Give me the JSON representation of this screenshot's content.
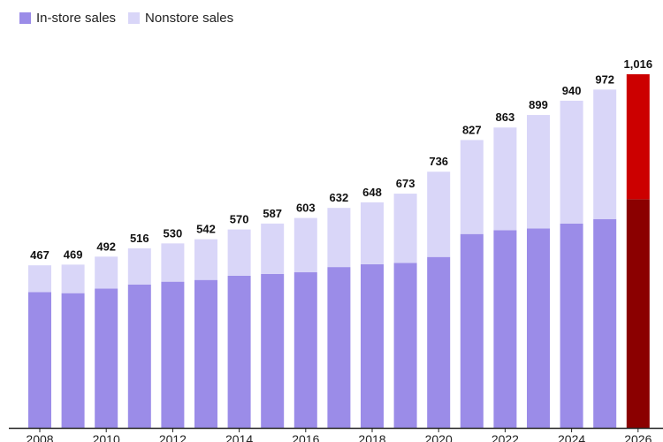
{
  "legend": {
    "in_store_label": "In-store sales",
    "nonstore_label": "Nonstore sales"
  },
  "colors": {
    "in_store": "#9b8ce8",
    "nonstore": "#d9d6f8",
    "in_store_highlight": "#8b0000",
    "nonstore_highlight": "#cc0000",
    "axis": "#222222"
  },
  "chart_data": {
    "type": "bar",
    "stacked": true,
    "categories": [
      "2008",
      "2009",
      "2010",
      "2011",
      "2012",
      "2013",
      "2014",
      "2015",
      "2016",
      "2017",
      "2018",
      "2019",
      "2020",
      "2021",
      "2022",
      "2023",
      "2024",
      "2025",
      "2026"
    ],
    "tick_labels": [
      "2008",
      "",
      "2010",
      "",
      "2012",
      "",
      "2014",
      "",
      "2016",
      "",
      "2018",
      "",
      "2020",
      "",
      "2022",
      "",
      "2024",
      "",
      "2026"
    ],
    "series": [
      {
        "name": "In-store sales",
        "values": [
          390,
          387,
          400,
          412,
          420,
          425,
          437,
          442,
          447,
          462,
          470,
          474,
          491,
          557,
          568,
          573,
          587,
          600,
          657
        ]
      },
      {
        "name": "Nonstore sales",
        "values": [
          77,
          82,
          92,
          104,
          110,
          117,
          133,
          145,
          156,
          170,
          178,
          199,
          245,
          270,
          295,
          326,
          353,
          372,
          359
        ]
      }
    ],
    "totals": [
      "467",
      "469",
      "492",
      "516",
      "530",
      "542",
      "570",
      "587",
      "603",
      "632",
      "648",
      "673",
      "736",
      "827",
      "863",
      "899",
      "940",
      "972",
      "1,016"
    ],
    "highlight_index": 18,
    "ylim": [
      0,
      1016
    ],
    "grid": false,
    "legend_position": "top-left"
  }
}
